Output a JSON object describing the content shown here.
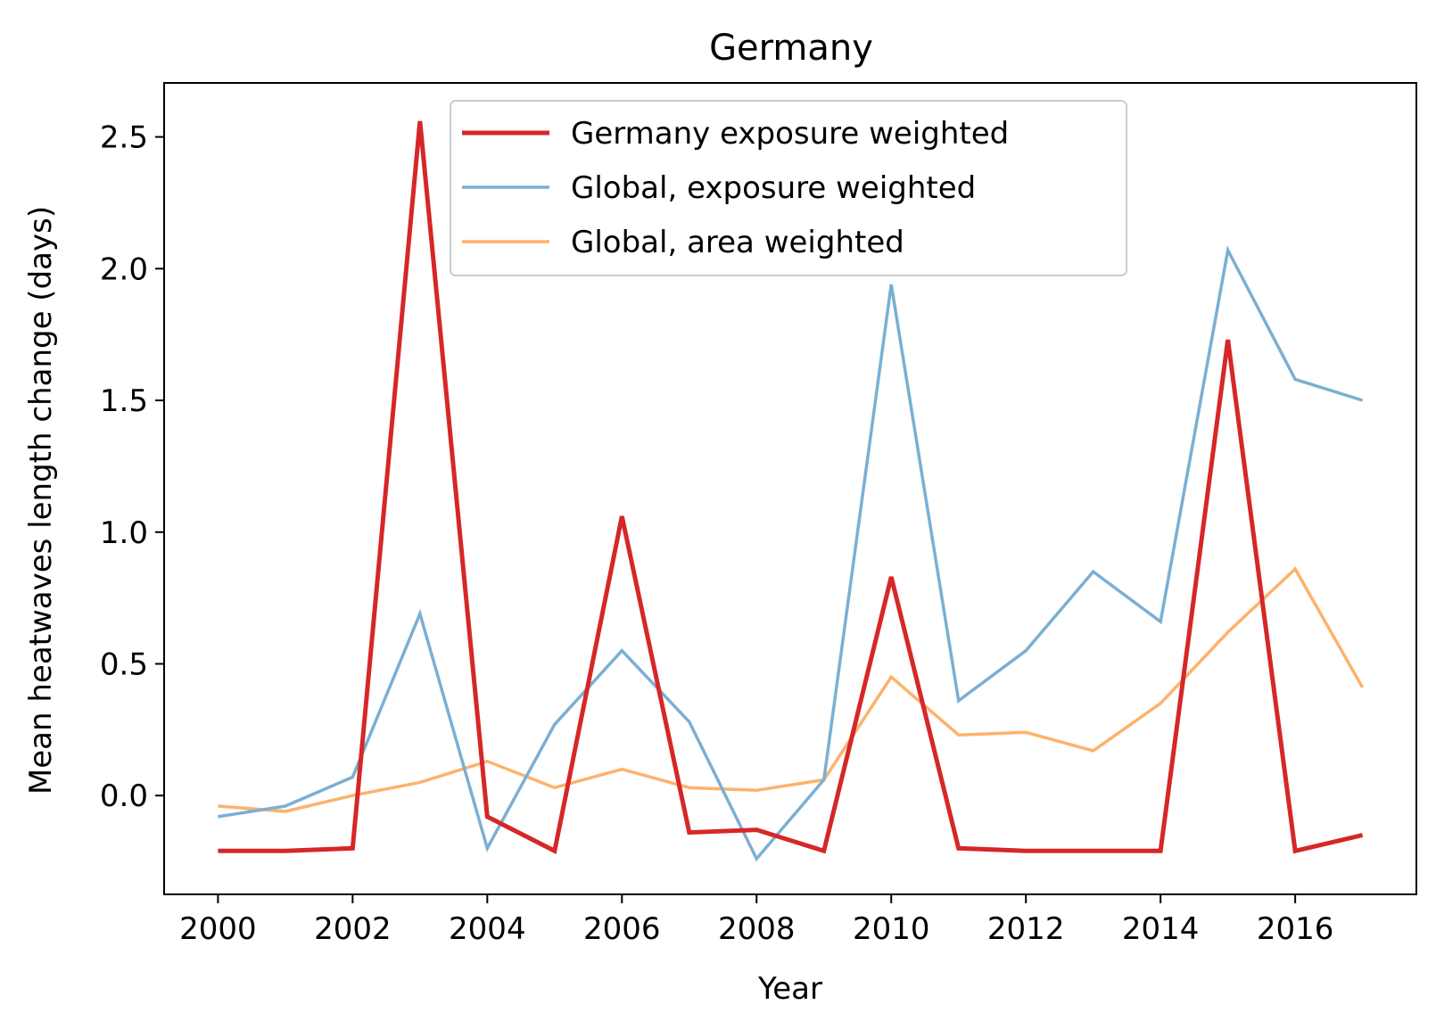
{
  "chart_data": {
    "type": "line",
    "title": "Germany",
    "xlabel": "Year",
    "ylabel": "Mean heatwaves length change (days)",
    "x": [
      2000,
      2001,
      2002,
      2003,
      2004,
      2005,
      2006,
      2007,
      2008,
      2009,
      2010,
      2011,
      2012,
      2013,
      2014,
      2015,
      2016,
      2017
    ],
    "xlim": [
      1999.2,
      2017.8
    ],
    "ylim": [
      -0.375,
      2.705
    ],
    "xticks": [
      2000,
      2002,
      2004,
      2006,
      2008,
      2010,
      2012,
      2014,
      2016
    ],
    "xtick_labels": [
      "2000",
      "2002",
      "2004",
      "2006",
      "2008",
      "2010",
      "2012",
      "2014",
      "2016"
    ],
    "yticks": [
      0.0,
      0.5,
      1.0,
      1.5,
      2.0,
      2.5
    ],
    "ytick_labels": [
      "0.0",
      "0.5",
      "1.0",
      "1.5",
      "2.0",
      "2.5"
    ],
    "grid": false,
    "legend_position": "top-center",
    "series": [
      {
        "name": "Germany exposure weighted",
        "color": "#d62728",
        "values": [
          -0.21,
          -0.21,
          -0.2,
          2.56,
          -0.08,
          -0.21,
          1.06,
          -0.14,
          -0.13,
          -0.21,
          0.83,
          -0.2,
          -0.21,
          -0.21,
          -0.21,
          1.73,
          -0.21,
          -0.15
        ]
      },
      {
        "name": "Global, exposure weighted",
        "color": "#7bafd4",
        "values": [
          -0.08,
          -0.04,
          0.07,
          0.69,
          -0.2,
          0.27,
          0.55,
          0.28,
          -0.24,
          0.06,
          1.94,
          0.36,
          0.55,
          0.85,
          0.66,
          2.07,
          1.58,
          1.5
        ]
      },
      {
        "name": "Global, area weighted",
        "color": "#fdb26b",
        "values": [
          -0.04,
          -0.06,
          0.0,
          0.05,
          0.13,
          0.03,
          0.1,
          0.03,
          0.02,
          0.06,
          0.45,
          0.23,
          0.24,
          0.17,
          0.35,
          0.62,
          0.86,
          0.41
        ]
      }
    ]
  }
}
